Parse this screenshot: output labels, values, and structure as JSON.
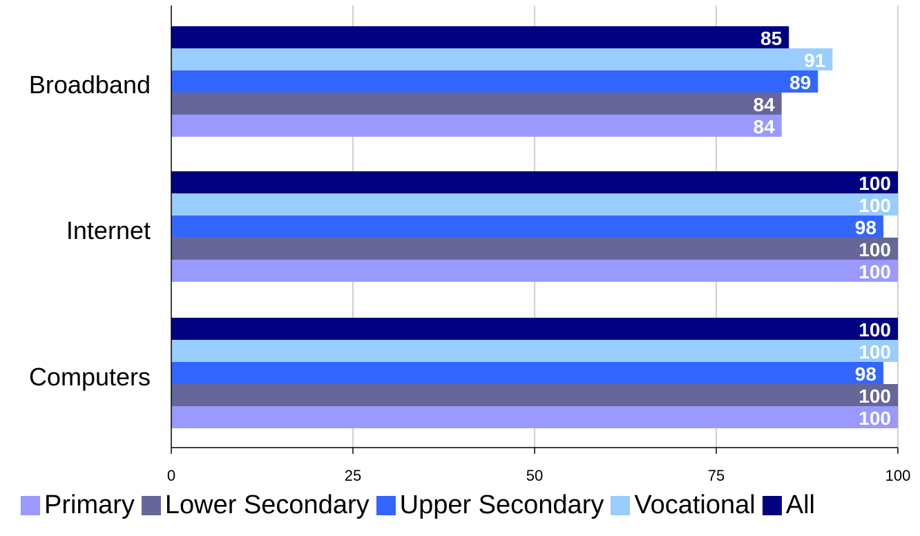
{
  "chart_data": {
    "type": "bar",
    "orientation": "horizontal",
    "categories": [
      "Broadband",
      "Internet",
      "Computers"
    ],
    "series": [
      {
        "name": "All",
        "color": "#000080",
        "values": [
          85,
          100,
          100
        ]
      },
      {
        "name": "Vocational",
        "color": "#99ccff",
        "values": [
          91,
          100,
          100
        ]
      },
      {
        "name": "Upper Secondary",
        "color": "#3366ff",
        "values": [
          89,
          98,
          98
        ]
      },
      {
        "name": "Lower Secondary",
        "color": "#666699",
        "values": [
          84,
          100,
          100
        ]
      },
      {
        "name": "Primary",
        "color": "#9999ff",
        "values": [
          84,
          100,
          100
        ]
      }
    ],
    "xlim": [
      0,
      100
    ],
    "xticks": [
      "0",
      "25",
      "50",
      "75",
      "100"
    ],
    "grid": "vertical",
    "data_labels": true,
    "legend_position": "bottom",
    "legend_order": [
      "Primary",
      "Lower Secondary",
      "Upper Secondary",
      "Vocational",
      "All"
    ]
  }
}
